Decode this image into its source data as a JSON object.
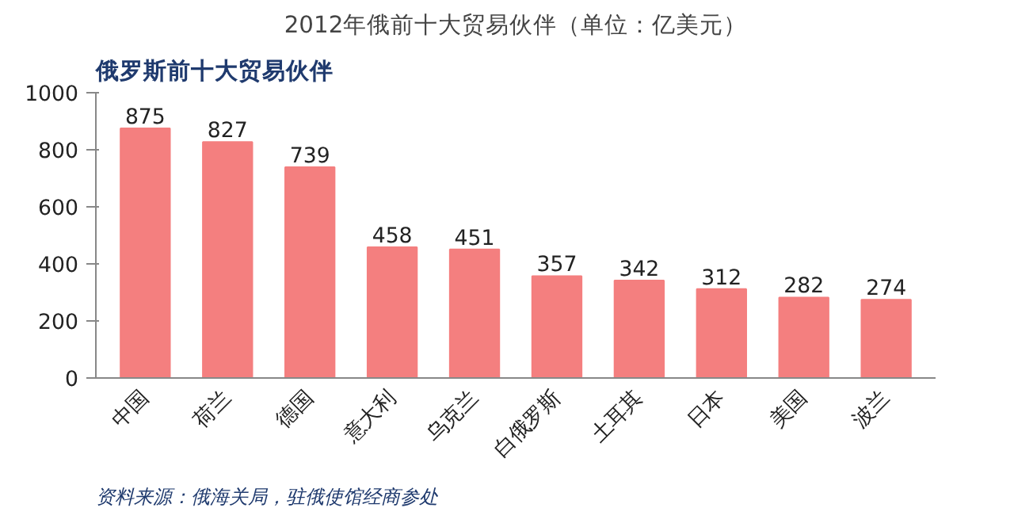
{
  "chart_data": {
    "type": "bar",
    "title": "俄罗斯前十大贸易伙伴",
    "subtitle": "2012年俄前十大贸易伙伴（单位：亿美元）",
    "categories": [
      "中国",
      "荷兰",
      "德国",
      "意大利",
      "乌克兰",
      "白俄罗斯",
      "土耳其",
      "日本",
      "美国",
      "波兰"
    ],
    "values": [
      875,
      827,
      739,
      458,
      451,
      357,
      342,
      312,
      282,
      274
    ],
    "color": "#f47f7f",
    "ylim": [
      0,
      1000
    ],
    "yticks": [
      0,
      200,
      400,
      600,
      800,
      1000
    ],
    "grid": false,
    "data_labels": true,
    "annotations": [
      "资料来源：俄海关局，驻俄使馆经商参处"
    ]
  }
}
